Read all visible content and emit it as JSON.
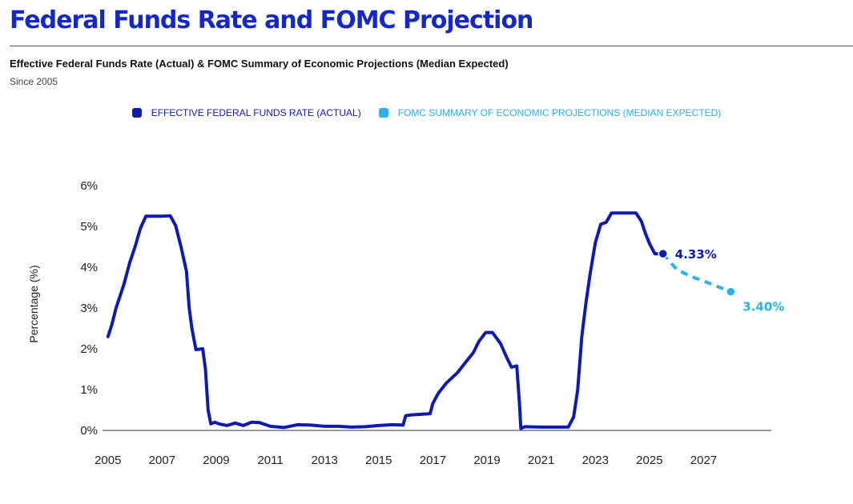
{
  "header": {
    "title": "Federal Funds Rate and FOMC Projection",
    "subtitle": "Effective Federal Funds Rate (Actual) & FOMC Summary of Economic Projections (Median Expected)",
    "since": "Since 2005"
  },
  "colors": {
    "actual": "#0f1bb0",
    "projection": "#2ab2ea"
  },
  "chart_data": {
    "type": "line",
    "title": "Federal Funds Rate and FOMC Projection",
    "xlabel": "",
    "ylabel": "Percentage (%)",
    "xlim": [
      2004.8,
      2029.5
    ],
    "ylim": [
      0,
      6
    ],
    "x_ticks": [
      2005,
      2007,
      2009,
      2011,
      2013,
      2015,
      2017,
      2019,
      2021,
      2023,
      2025,
      2027
    ],
    "x_tick_labels": [
      "2005",
      "2007",
      "2009",
      "2011",
      "2013",
      "2015",
      "2017",
      "2019",
      "2021",
      "2023",
      "2025",
      "2027"
    ],
    "y_ticks": [
      0,
      1,
      2,
      3,
      4,
      5,
      6
    ],
    "y_tick_labels": [
      "0%",
      "1%",
      "2%",
      "3%",
      "4%",
      "5%",
      "6%"
    ],
    "legend": [
      {
        "name": "EFFECTIVE FEDERAL FUNDS RATE (ACTUAL)",
        "color": "#0f1bb0"
      },
      {
        "name": "FOMC SUMMARY OF ECONOMIC PROJECTIONS (MEDIAN EXPECTED)",
        "color": "#2ab2ea"
      }
    ],
    "series": [
      {
        "name": "EFFECTIVE FEDERAL FUNDS RATE (ACTUAL)",
        "style": "solid",
        "x": [
          2005.0,
          2005.15,
          2005.3,
          2005.45,
          2005.6,
          2005.8,
          2006.0,
          2006.2,
          2006.4,
          2006.55,
          2007.0,
          2007.3,
          2007.5,
          2007.7,
          2007.9,
          2008.0,
          2008.1,
          2008.25,
          2008.5,
          2008.6,
          2008.7,
          2008.8,
          2008.95,
          2009.1,
          2009.4,
          2009.7,
          2010.0,
          2010.3,
          2010.6,
          2011.0,
          2011.5,
          2012.0,
          2012.5,
          2013.0,
          2013.5,
          2014.0,
          2014.5,
          2015.0,
          2015.5,
          2015.9,
          2016.0,
          2016.2,
          2016.9,
          2017.0,
          2017.2,
          2017.5,
          2017.9,
          2018.2,
          2018.5,
          2018.7,
          2018.95,
          2019.2,
          2019.5,
          2019.7,
          2019.9,
          2020.1,
          2020.2,
          2020.25,
          2020.4,
          2021.0,
          2021.5,
          2022.0,
          2022.2,
          2022.35,
          2022.5,
          2022.65,
          2022.8,
          2023.0,
          2023.2,
          2023.4,
          2023.6,
          2023.8,
          2024.0,
          2024.5,
          2024.7,
          2024.85,
          2025.0,
          2025.2,
          2025.5
        ],
        "values": [
          2.3,
          2.6,
          3.0,
          3.3,
          3.6,
          4.1,
          4.5,
          4.95,
          5.25,
          5.25,
          5.25,
          5.26,
          5.02,
          4.5,
          3.9,
          3.0,
          2.5,
          1.98,
          2.0,
          1.5,
          0.5,
          0.16,
          0.2,
          0.16,
          0.12,
          0.18,
          0.12,
          0.2,
          0.19,
          0.1,
          0.07,
          0.14,
          0.13,
          0.1,
          0.1,
          0.08,
          0.09,
          0.12,
          0.14,
          0.13,
          0.36,
          0.38,
          0.41,
          0.66,
          0.91,
          1.16,
          1.41,
          1.66,
          1.91,
          2.18,
          2.4,
          2.4,
          2.13,
          1.83,
          1.55,
          1.58,
          0.65,
          0.05,
          0.09,
          0.08,
          0.08,
          0.08,
          0.33,
          1.0,
          2.3,
          3.1,
          3.8,
          4.6,
          5.05,
          5.1,
          5.33,
          5.33,
          5.33,
          5.33,
          5.13,
          4.83,
          4.58,
          4.33,
          4.33
        ],
        "end_label": "4.33%"
      },
      {
        "name": "FOMC SUMMARY OF ECONOMIC PROJECTIONS (MEDIAN EXPECTED)",
        "style": "dashed",
        "x": [
          2025.5,
          2026.0,
          2026.5,
          2027.0,
          2027.5,
          2028.0
        ],
        "values": [
          4.33,
          3.95,
          3.78,
          3.66,
          3.53,
          3.4
        ],
        "end_label": "3.40%"
      }
    ]
  }
}
